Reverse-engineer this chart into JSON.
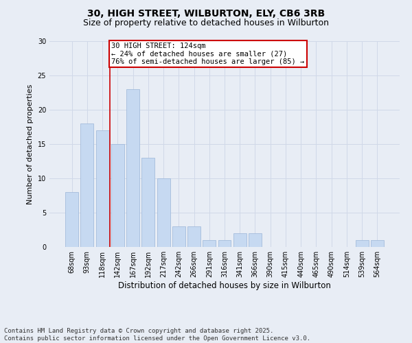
{
  "title1": "30, HIGH STREET, WILBURTON, ELY, CB6 3RB",
  "title2": "Size of property relative to detached houses in Wilburton",
  "xlabel": "Distribution of detached houses by size in Wilburton",
  "ylabel": "Number of detached properties",
  "categories": [
    "68sqm",
    "93sqm",
    "118sqm",
    "142sqm",
    "167sqm",
    "192sqm",
    "217sqm",
    "242sqm",
    "266sqm",
    "291sqm",
    "316sqm",
    "341sqm",
    "366sqm",
    "390sqm",
    "415sqm",
    "440sqm",
    "465sqm",
    "490sqm",
    "514sqm",
    "539sqm",
    "564sqm"
  ],
  "values": [
    8,
    18,
    17,
    15,
    23,
    13,
    10,
    3,
    3,
    1,
    1,
    2,
    2,
    0,
    0,
    0,
    0,
    0,
    0,
    1,
    1
  ],
  "bar_color": "#c6d9f1",
  "bar_edgecolor": "#9ab5d8",
  "grid_color": "#d0d8e8",
  "background_color": "#e8edf5",
  "vline_x": 2.5,
  "vline_color": "#cc0000",
  "annotation_text": "30 HIGH STREET: 124sqm\n← 24% of detached houses are smaller (27)\n76% of semi-detached houses are larger (85) →",
  "annotation_box_color": "#ffffff",
  "annotation_box_edgecolor": "#cc0000",
  "ylim": [
    0,
    30
  ],
  "yticks": [
    0,
    5,
    10,
    15,
    20,
    25,
    30
  ],
  "footer": "Contains HM Land Registry data © Crown copyright and database right 2025.\nContains public sector information licensed under the Open Government Licence v3.0.",
  "title1_fontsize": 10,
  "title2_fontsize": 9,
  "xlabel_fontsize": 8.5,
  "ylabel_fontsize": 8,
  "tick_fontsize": 7,
  "annotation_fontsize": 7.5,
  "footer_fontsize": 6.5
}
